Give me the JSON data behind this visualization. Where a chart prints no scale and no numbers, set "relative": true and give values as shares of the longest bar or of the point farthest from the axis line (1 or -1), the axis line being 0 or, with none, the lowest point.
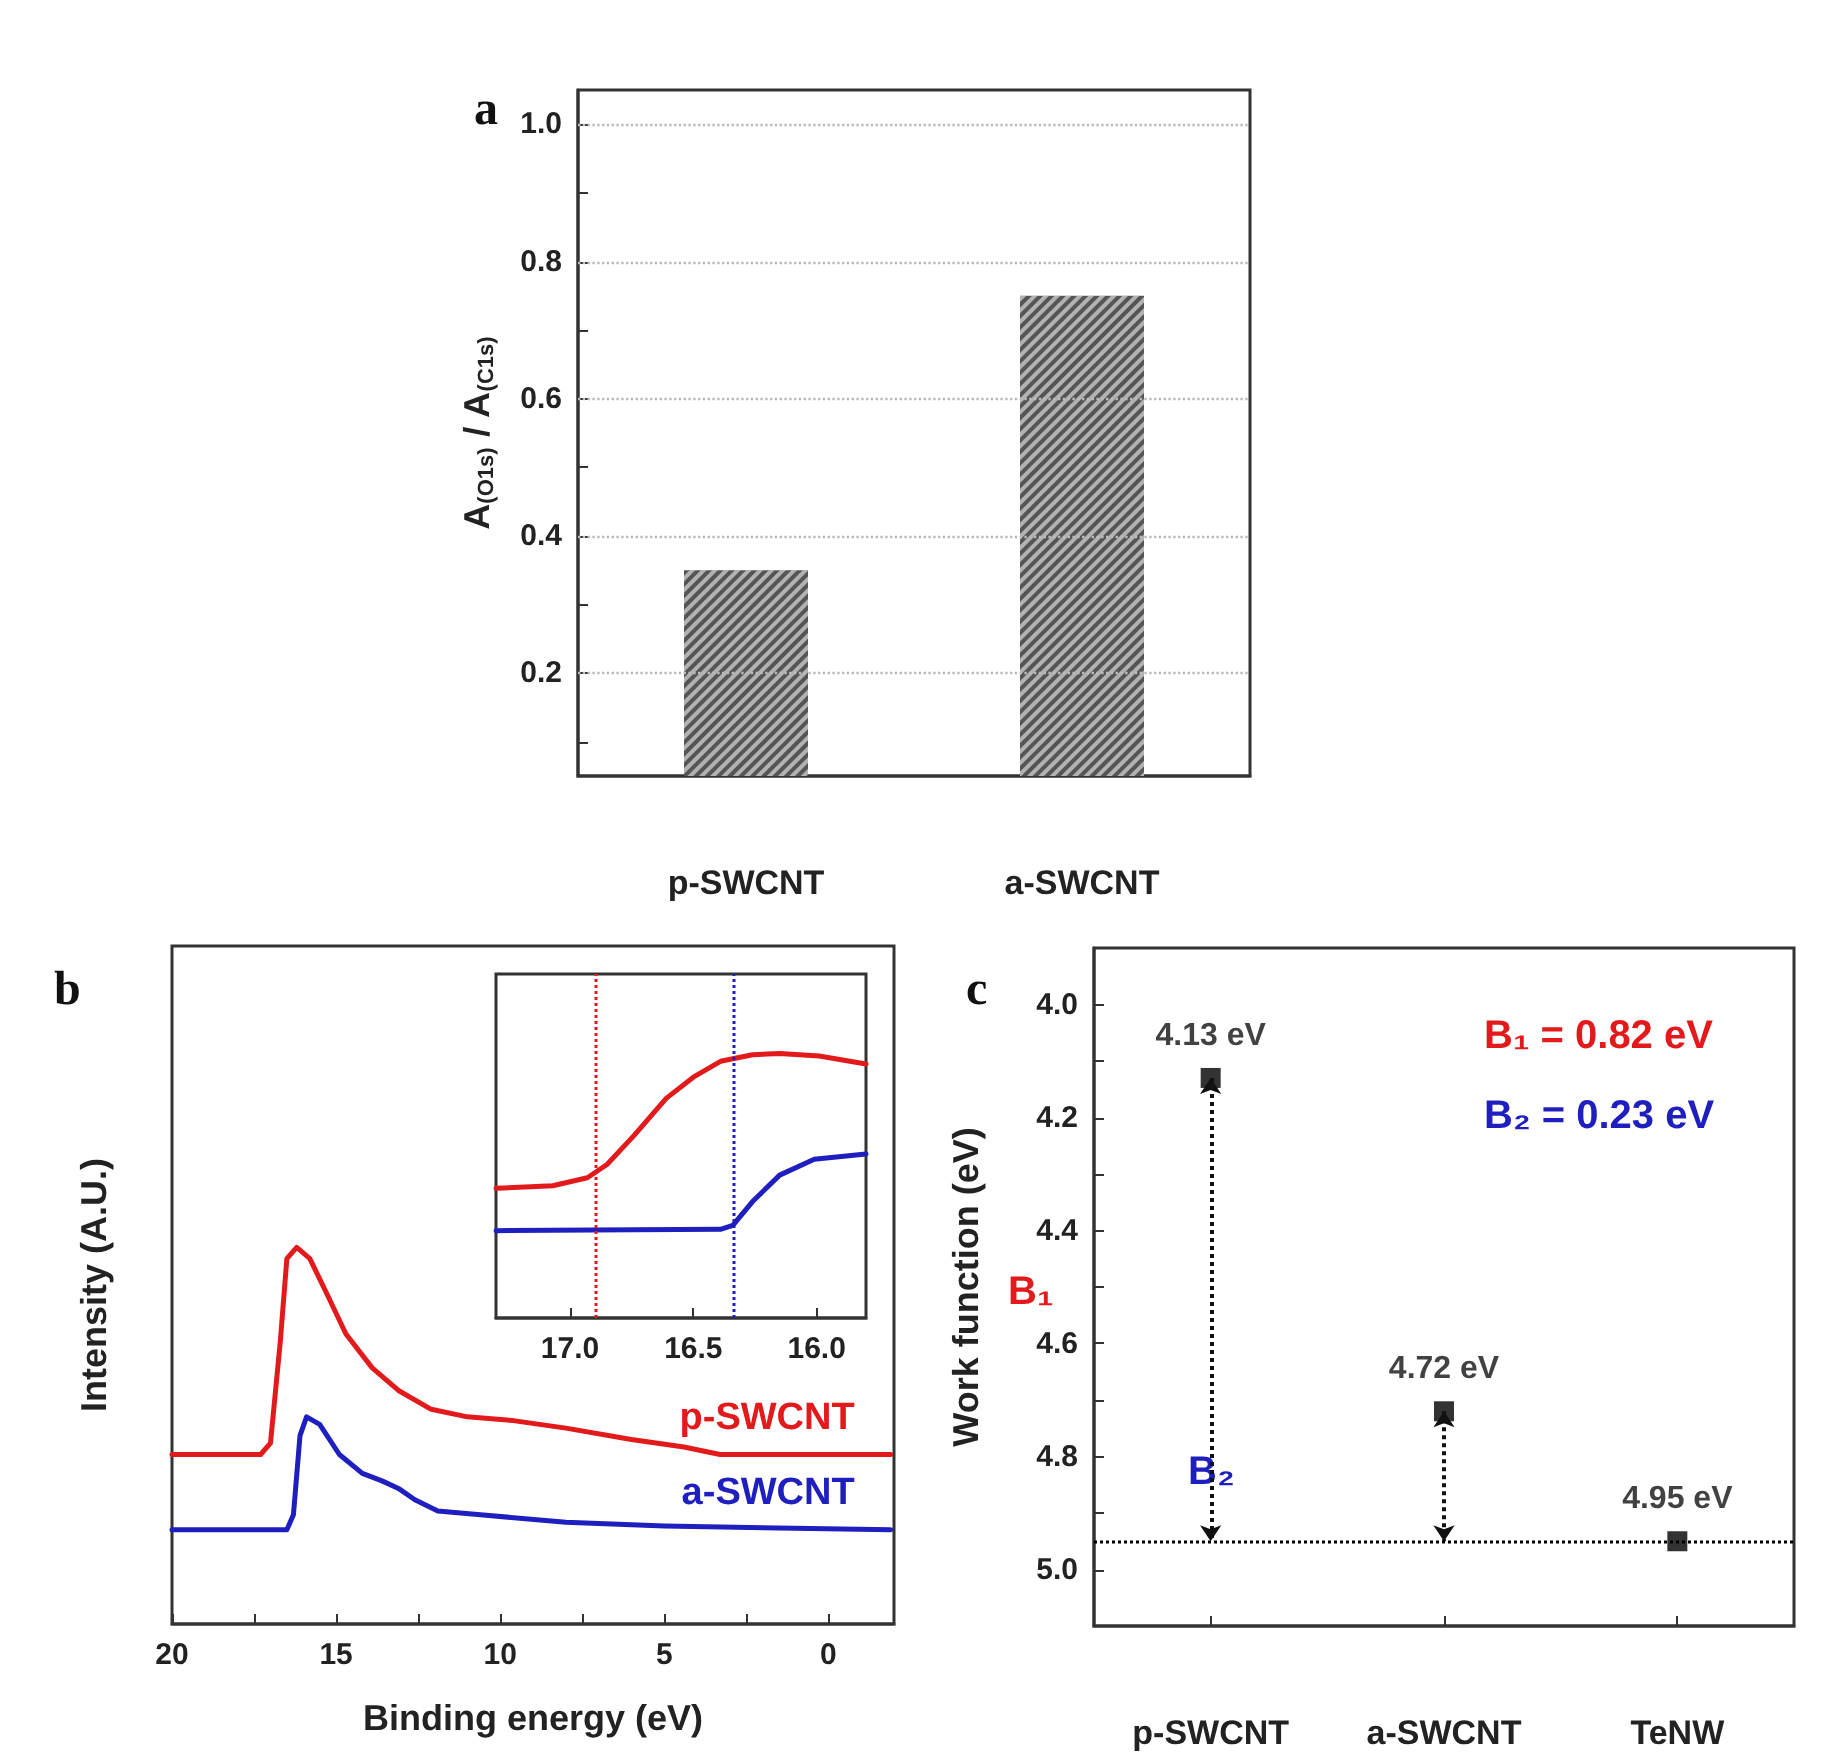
{
  "chart_data": [
    {
      "type": "bar",
      "title": "a",
      "ylabel": "A$_{(O1s)}$ / A$_{(C1s)}$",
      "categories": [
        "p-SWCNT",
        "a-SWCNT"
      ],
      "values": [
        0.35,
        0.75
      ],
      "color": "#555555",
      "ylim": [
        0.05,
        1.05
      ],
      "yticks": [
        {
          "value": 0.1,
          "label": null
        },
        0.2,
        {
          "value": 0.3,
          "label": null
        },
        0.4,
        {
          "value": 0.5,
          "label": null
        },
        0.6,
        {
          "value": 0.7,
          "label": null
        },
        0.8,
        {
          "value": 0.9,
          "label": null
        },
        {
          "value": 1,
          "label": "1.0"
        }
      ],
      "grid": "y"
    },
    {
      "type": "line",
      "title": "b",
      "xlabel": "Binding energy (eV)",
      "ylabel": "Intensity (A.U.)",
      "relative": true,
      "xlim": [
        20,
        -2
      ],
      "xticks": [
        20,
        {
          "value": 17.5,
          "label": null
        },
        15,
        {
          "value": 12.5,
          "label": null
        },
        10,
        {
          "value": 7.5,
          "label": null
        },
        5,
        {
          "value": 2.5,
          "label": null
        },
        0
      ],
      "series": [
        {
          "name": "p-SWCNT",
          "color": "#e31a1c",
          "x": [
            20,
            17.3,
            17.0,
            16.7,
            16.5,
            16.2,
            15.8,
            15.3,
            14.7,
            13.9,
            13.1,
            12.1,
            11.0,
            9.6,
            8.0,
            6.0,
            4.4,
            3.3,
            -1.9
          ],
          "values": [
            0.45,
            0.45,
            0.48,
            0.75,
            0.97,
            1.0,
            0.97,
            0.88,
            0.77,
            0.68,
            0.62,
            0.57,
            0.55,
            0.54,
            0.52,
            0.49,
            0.47,
            0.45,
            0.45
          ]
        },
        {
          "name": "a-SWCNT",
          "color": "#1f1fbf",
          "x": [
            20,
            16.5,
            16.3,
            16.1,
            15.9,
            15.5,
            14.9,
            14.2,
            13.6,
            13.1,
            12.6,
            11.9,
            10.6,
            8.0,
            5.0,
            -1.9
          ],
          "values": [
            0.25,
            0.25,
            0.29,
            0.5,
            0.55,
            0.53,
            0.45,
            0.4,
            0.38,
            0.36,
            0.33,
            0.3,
            0.29,
            0.27,
            0.26,
            0.25
          ]
        }
      ]
    },
    {
      "type": "line",
      "relative": true,
      "xlim": [
        17.3,
        15.8
      ],
      "xticks": [
        {
          "value": 17,
          "label": "17.0"
        },
        16.5,
        {
          "value": 16,
          "label": "16.0"
        }
      ],
      "series": [
        {
          "color": "#e31a1c",
          "x": [
            17.3,
            17.07,
            16.93,
            16.85,
            16.74,
            16.61,
            16.5,
            16.39,
            16.26,
            16.15,
            15.99,
            15.8
          ],
          "values": [
            0.49,
            0.5,
            0.53,
            0.58,
            0.69,
            0.83,
            0.91,
            0.97,
            0.995,
            1.0,
            0.99,
            0.96
          ]
        },
        {
          "color": "#1f1fbf",
          "x": [
            17.3,
            16.39,
            16.34,
            16.26,
            16.15,
            16.01,
            15.8
          ],
          "values": [
            0.33,
            0.335,
            0.35,
            0.44,
            0.54,
            0.6,
            0.62
          ]
        }
      ],
      "ref_lines": [
        {
          "axis": "x",
          "value": 16.9,
          "color": "#e31a1c",
          "line_style": "dotted"
        },
        {
          "axis": "x",
          "value": 16.34,
          "color": "#1f1fbf",
          "line_style": "dotted"
        }
      ]
    },
    {
      "type": "scatter",
      "title": "c",
      "ylabel": "Work function (eV)",
      "categories": [
        "p-SWCNT",
        "a-SWCNT",
        "TeNW"
      ],
      "values": [
        4.13,
        4.72,
        4.95
      ],
      "color": "#000000",
      "marker": "square",
      "value_labels": [
        "4.13 eV",
        "4.72 eV",
        "4.95 eV"
      ],
      "ylim": [
        5.1,
        3.9
      ],
      "yticks": [
        {
          "value": 4,
          "label": "4.0"
        },
        {
          "value": 4.1,
          "label": null
        },
        4.2,
        {
          "value": 4.3,
          "label": null
        },
        4.4,
        {
          "value": 4.5,
          "label": null
        },
        4.6,
        {
          "value": 4.7,
          "label": null
        },
        4.8,
        {
          "value": 4.9,
          "label": null
        },
        {
          "value": 5,
          "label": "5.0"
        }
      ],
      "ref_lines": [
        {
          "axis": "y",
          "value": 4.95,
          "color": "#000000",
          "line_style": "dotted"
        }
      ],
      "annotations": [
        "B₁",
        "B₂",
        "B₁ = 0.82 eV",
        "B₂ = 0.23 eV"
      ]
    }
  ]
}
